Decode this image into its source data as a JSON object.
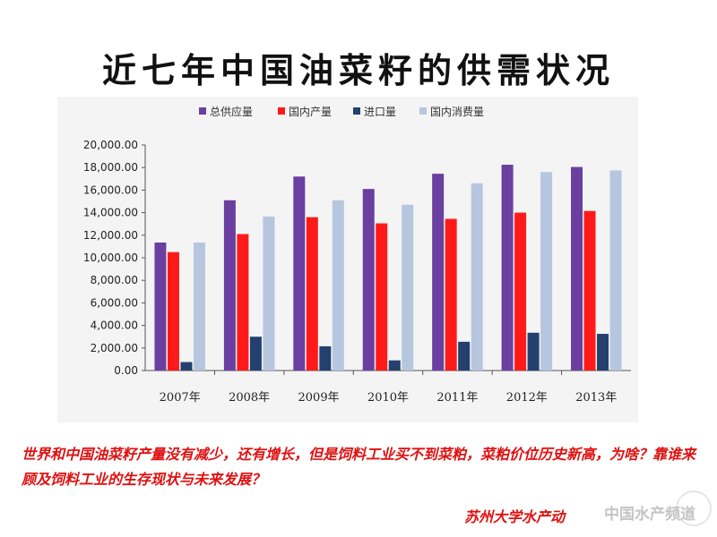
{
  "title": "近七年中国油菜籽的供需状况",
  "caption": "世界和中国油菜籽产量没有减少，还有增长，但是饲料工业买不到菜粕，菜粕价位历史新高，为啥？靠谁来顾及饲料工业的生存现状与未来发展？",
  "source": "苏州大学水产动",
  "watermark": "中国水产频道",
  "colors": {
    "series": [
      "#6a3fa0",
      "#ff1a1a",
      "#23406e",
      "#b7c6df"
    ],
    "panel_bg": "#f4f4f4"
  },
  "chart_data": {
    "type": "bar",
    "categories": [
      "2007年",
      "2008年",
      "2009年",
      "2010年",
      "2011年",
      "2012年",
      "2013年"
    ],
    "series": [
      {
        "name": "总供应量",
        "values": [
          11350,
          15100,
          17200,
          16100,
          17450,
          18250,
          18050
        ]
      },
      {
        "name": "国内产量",
        "values": [
          10500,
          12100,
          13600,
          13050,
          13450,
          14000,
          14150
        ]
      },
      {
        "name": "进口量",
        "values": [
          750,
          3000,
          2150,
          900,
          2550,
          3350,
          3250
        ]
      },
      {
        "name": "国内消费量",
        "values": [
          11350,
          13650,
          15100,
          14700,
          16600,
          17600,
          17750
        ]
      }
    ],
    "yticks": [
      "0.00",
      "2,000.00",
      "4,000.00",
      "6,000.00",
      "8,000.00",
      "10,000.00",
      "12,000.00",
      "14,000.00",
      "16,000.00",
      "18,000.00",
      "20,000.00"
    ],
    "ylim": [
      0,
      20000
    ],
    "legend_position": "top",
    "grid": false
  }
}
